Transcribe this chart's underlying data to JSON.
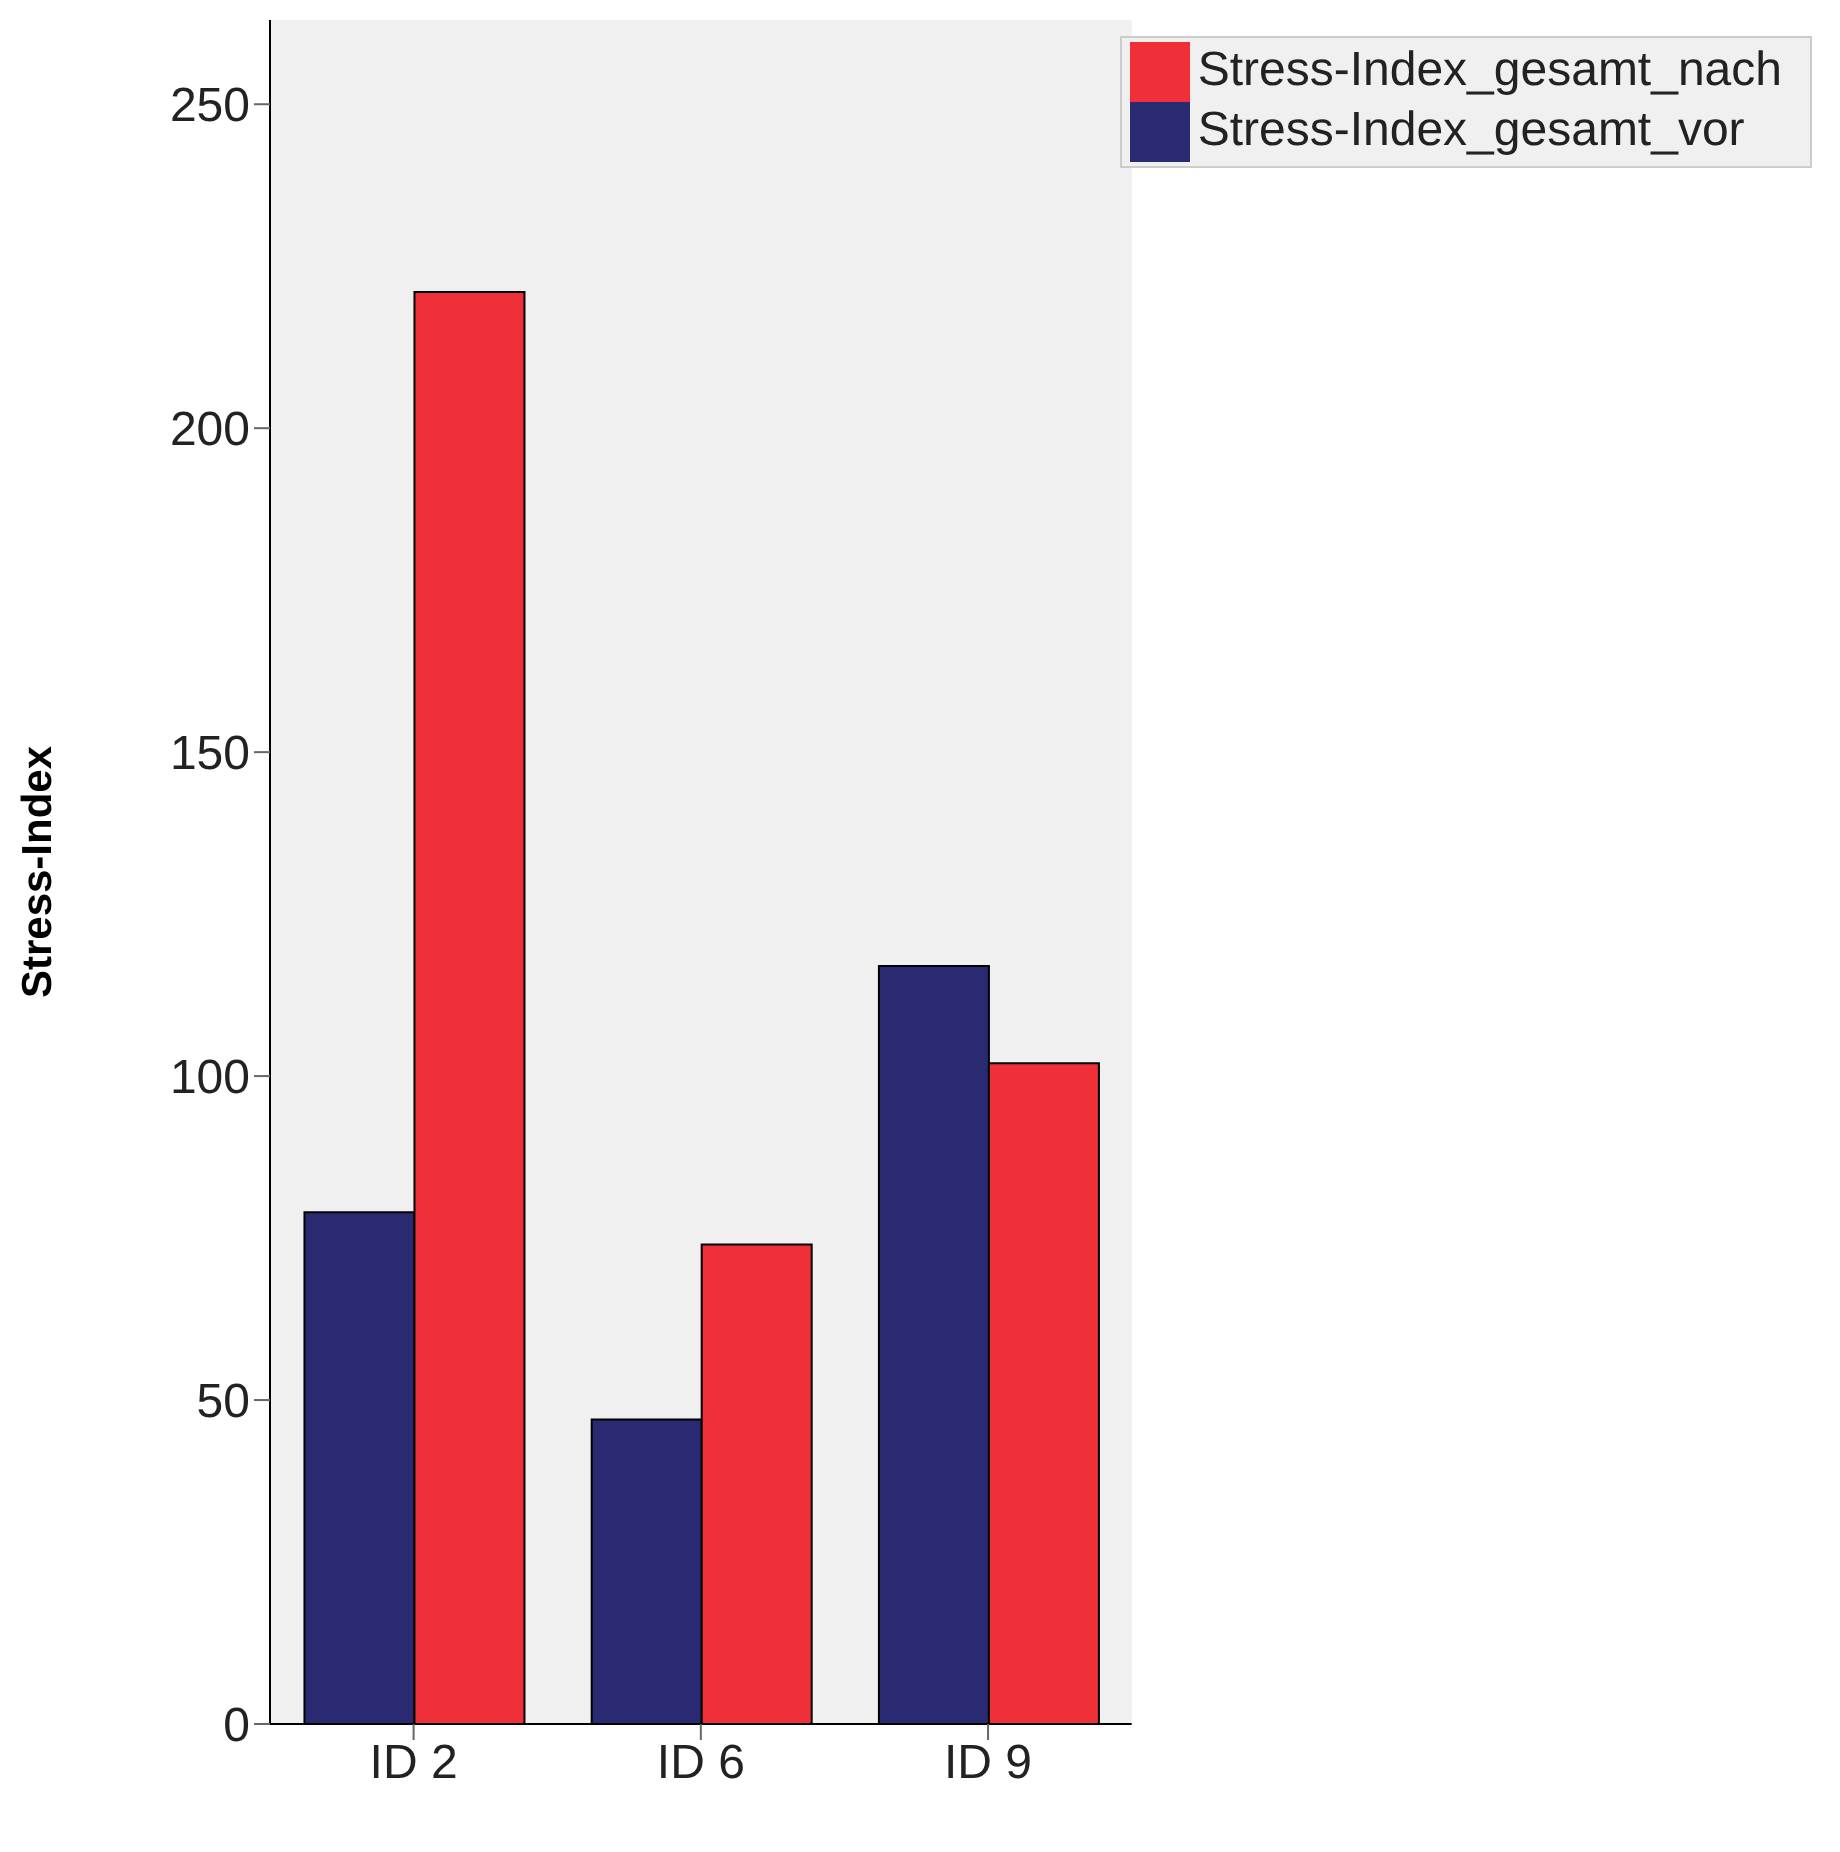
{
  "chart_data": {
    "type": "bar",
    "ylabel": "Stress-Index",
    "categories": [
      "ID 2",
      "ID 6",
      "ID 9"
    ],
    "series": [
      {
        "name": "Stress-Index_gesamt_vor",
        "color": "#292a72",
        "values": [
          79,
          47,
          117
        ]
      },
      {
        "name": "Stress-Index_gesamt_nach",
        "color": "#ef3038",
        "values": [
          221,
          74,
          102
        ]
      }
    ],
    "ylim": [
      0,
      263
    ],
    "yticks": [
      0,
      50,
      100,
      150,
      200,
      250
    ],
    "legend": "top right"
  }
}
